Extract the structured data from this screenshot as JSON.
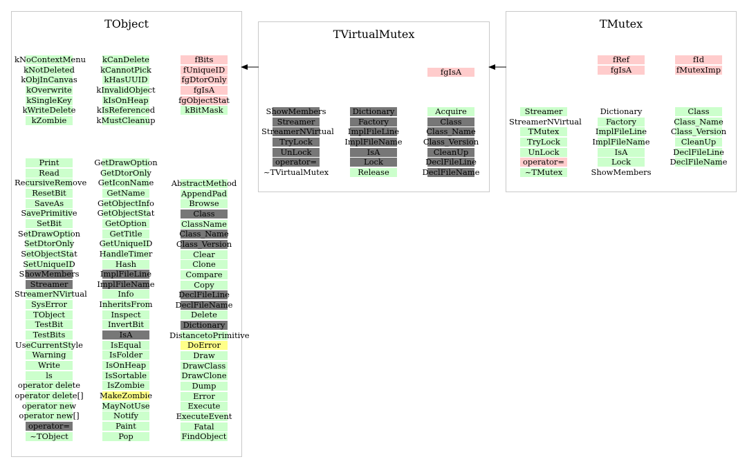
{
  "colors": {
    "green": "#ccffcc",
    "pink": "#ffcccc",
    "gray": "#777777",
    "yellow": "#ffff88",
    "none": "transparent"
  },
  "boxes": [
    {
      "key": "tobject",
      "title": "TObject",
      "columns": [
        {
          "items": [
            [
              "kNoContextMenu",
              "green"
            ],
            [
              "kNotDeleted",
              "green"
            ],
            [
              "kObjInCanvas",
              "green"
            ],
            [
              "kOverwrite",
              "green"
            ],
            [
              "kSingleKey",
              "green"
            ],
            [
              "kWriteDelete",
              "green"
            ],
            [
              "kZombie",
              "green"
            ]
          ]
        },
        {
          "items": [
            [
              "kCanDelete",
              "green"
            ],
            [
              "kCannotPick",
              "green"
            ],
            [
              "kHasUUID",
              "green"
            ],
            [
              "kInvalidObject",
              "green"
            ],
            [
              "kIsOnHeap",
              "green"
            ],
            [
              "kIsReferenced",
              "green"
            ],
            [
              "kMustCleanup",
              "green"
            ]
          ]
        },
        {
          "items": [
            [
              "fBits",
              "pink"
            ],
            [
              "fUniqueID",
              "pink"
            ],
            [
              "fgDtorOnly",
              "pink"
            ],
            [
              "fgIsA",
              "pink"
            ],
            [
              "fgObjectStat",
              "pink"
            ],
            [
              "kBitMask",
              "green"
            ]
          ]
        },
        {
          "items": [
            [
              "Print",
              "green"
            ],
            [
              "Read",
              "green"
            ],
            [
              "RecursiveRemove",
              "green"
            ],
            [
              "ResetBit",
              "green"
            ],
            [
              "SaveAs",
              "green"
            ],
            [
              "SavePrimitive",
              "green"
            ],
            [
              "SetBit",
              "green"
            ],
            [
              "SetDrawOption",
              "green"
            ],
            [
              "SetDtorOnly",
              "green"
            ],
            [
              "SetObjectStat",
              "green"
            ],
            [
              "SetUniqueID",
              "green"
            ],
            [
              "ShowMembers",
              "gray"
            ],
            [
              "Streamer",
              "gray"
            ],
            [
              "StreamerNVirtual",
              "green"
            ],
            [
              "SysError",
              "green"
            ],
            [
              "TObject",
              "green"
            ],
            [
              "TestBit",
              "green"
            ],
            [
              "TestBits",
              "green"
            ],
            [
              "UseCurrentStyle",
              "green"
            ],
            [
              "Warning",
              "green"
            ],
            [
              "Write",
              "green"
            ],
            [
              "ls",
              "green"
            ],
            [
              "operator delete",
              "green"
            ],
            [
              "operator delete[]",
              "green"
            ],
            [
              "operator new",
              "green"
            ],
            [
              "operator new[]",
              "green"
            ],
            [
              "operator=",
              "gray"
            ],
            [
              "~TObject",
              "green"
            ]
          ]
        },
        {
          "items": [
            [
              "GetDrawOption",
              "green"
            ],
            [
              "GetDtorOnly",
              "green"
            ],
            [
              "GetIconName",
              "green"
            ],
            [
              "GetName",
              "green"
            ],
            [
              "GetObjectInfo",
              "green"
            ],
            [
              "GetObjectStat",
              "green"
            ],
            [
              "GetOption",
              "green"
            ],
            [
              "GetTitle",
              "green"
            ],
            [
              "GetUniqueID",
              "green"
            ],
            [
              "HandleTimer",
              "green"
            ],
            [
              "Hash",
              "green"
            ],
            [
              "ImplFileLine",
              "gray"
            ],
            [
              "ImplFileName",
              "gray"
            ],
            [
              "Info",
              "green"
            ],
            [
              "InheritsFrom",
              "green"
            ],
            [
              "Inspect",
              "green"
            ],
            [
              "InvertBit",
              "green"
            ],
            [
              "IsA",
              "gray"
            ],
            [
              "IsEqual",
              "green"
            ],
            [
              "IsFolder",
              "green"
            ],
            [
              "IsOnHeap",
              "green"
            ],
            [
              "IsSortable",
              "green"
            ],
            [
              "IsZombie",
              "green"
            ],
            [
              "MakeZombie",
              "yellow"
            ],
            [
              "MayNotUse",
              "green"
            ],
            [
              "Notify",
              "green"
            ],
            [
              "Paint",
              "green"
            ],
            [
              "Pop",
              "green"
            ]
          ]
        },
        {
          "items": [
            [
              "AbstractMethod",
              "green"
            ],
            [
              "AppendPad",
              "green"
            ],
            [
              "Browse",
              "green"
            ],
            [
              "Class",
              "gray"
            ],
            [
              "ClassName",
              "green"
            ],
            [
              "Class_Name",
              "gray"
            ],
            [
              "Class_Version",
              "gray"
            ],
            [
              "Clear",
              "green"
            ],
            [
              "Clone",
              "green"
            ],
            [
              "Compare",
              "green"
            ],
            [
              "Copy",
              "green"
            ],
            [
              "DeclFileLine",
              "gray"
            ],
            [
              "DeclFileName",
              "gray"
            ],
            [
              "Delete",
              "green"
            ],
            [
              "Dictionary",
              "gray"
            ],
            [
              "DistancetoPrimitive",
              "green"
            ],
            [
              "DoError",
              "yellow"
            ],
            [
              "Draw",
              "green"
            ],
            [
              "DrawClass",
              "green"
            ],
            [
              "DrawClone",
              "green"
            ],
            [
              "Dump",
              "green"
            ],
            [
              "Error",
              "green"
            ],
            [
              "Execute",
              "green"
            ],
            [
              "ExecuteEvent",
              "green"
            ],
            [
              "Fatal",
              "green"
            ],
            [
              "FindObject",
              "green"
            ]
          ]
        }
      ]
    },
    {
      "key": "tvirtualmutex",
      "title": "TVirtualMutex",
      "columns": [
        {
          "items": [
            [
              "fgIsA",
              "pink"
            ]
          ]
        },
        {
          "items": [
            [
              "ShowMembers",
              "gray"
            ],
            [
              "Streamer",
              "gray"
            ],
            [
              "StreamerNVirtual",
              "gray"
            ],
            [
              "TryLock",
              "gray"
            ],
            [
              "UnLock",
              "gray"
            ],
            [
              "operator=",
              "gray"
            ],
            [
              "~TVirtualMutex",
              "none"
            ]
          ]
        },
        {
          "items": [
            [
              "Dictionary",
              "gray"
            ],
            [
              "Factory",
              "gray"
            ],
            [
              "ImplFileLine",
              "gray"
            ],
            [
              "ImplFileName",
              "gray"
            ],
            [
              "IsA",
              "gray"
            ],
            [
              "Lock",
              "gray"
            ],
            [
              "Release",
              "green"
            ]
          ]
        },
        {
          "items": [
            [
              "Acquire",
              "green"
            ],
            [
              "Class",
              "gray"
            ],
            [
              "Class_Name",
              "gray"
            ],
            [
              "Class_Version",
              "gray"
            ],
            [
              "CleanUp",
              "gray"
            ],
            [
              "DeclFileLine",
              "gray"
            ],
            [
              "DeclFileName",
              "gray"
            ]
          ]
        }
      ]
    },
    {
      "key": "tmutex",
      "title": "TMutex",
      "columns": [
        {
          "items": [
            [
              "fRef",
              "pink"
            ],
            [
              "fgIsA",
              "pink"
            ]
          ]
        },
        {
          "items": [
            [
              "fId",
              "pink"
            ],
            [
              "fMutexImp",
              "pink"
            ]
          ]
        },
        {
          "items": [
            [
              "Streamer",
              "green"
            ],
            [
              "StreamerNVirtual",
              "none"
            ],
            [
              "TMutex",
              "green"
            ],
            [
              "TryLock",
              "green"
            ],
            [
              "UnLock",
              "green"
            ],
            [
              "operator=",
              "pink"
            ],
            [
              "~TMutex",
              "green"
            ]
          ]
        },
        {
          "items": [
            [
              "Dictionary",
              "none"
            ],
            [
              "Factory",
              "green"
            ],
            [
              "ImplFileLine",
              "green"
            ],
            [
              "ImplFileName",
              "green"
            ],
            [
              "IsA",
              "green"
            ],
            [
              "Lock",
              "green"
            ],
            [
              "ShowMembers",
              "none"
            ]
          ]
        },
        {
          "items": [
            [
              "Class",
              "green"
            ],
            [
              "Class_Name",
              "green"
            ],
            [
              "Class_Version",
              "green"
            ],
            [
              "CleanUp",
              "green"
            ],
            [
              "DeclFileLine",
              "green"
            ],
            [
              "DeclFileName",
              "green"
            ]
          ]
        }
      ]
    }
  ]
}
